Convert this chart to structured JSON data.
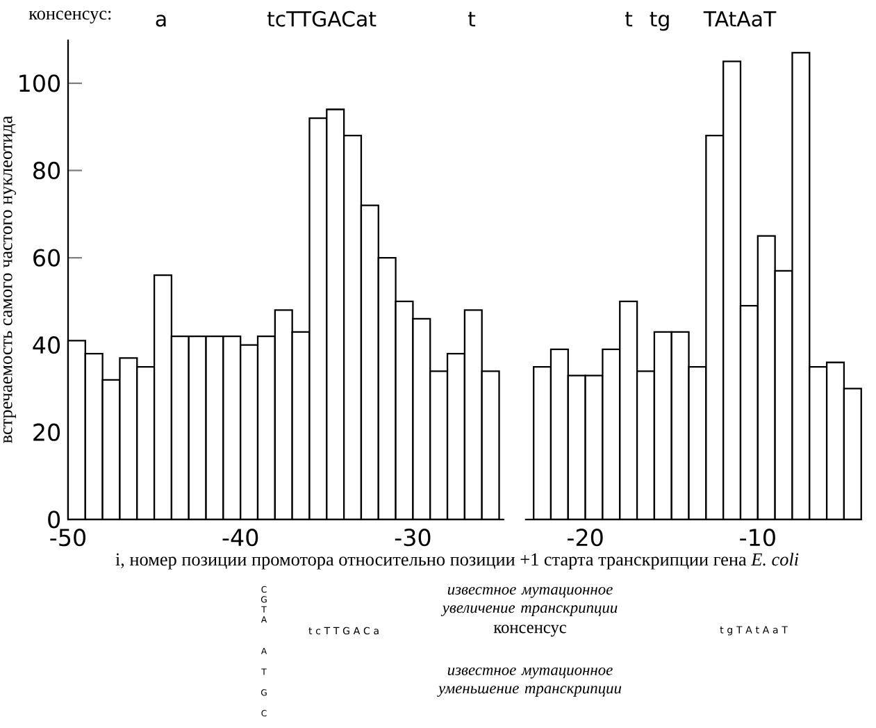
{
  "chart_data": {
    "type": "histogram",
    "title": "консенсус:",
    "ylabel": "встречаемость самого частого нуклеотида",
    "xlabel": "i, номер позиции промотора относительно позиции +1 старта транскрипции гена *E. coli*",
    "bins": [
      -50,
      -49,
      -48,
      -47,
      -46,
      -45,
      -44,
      -43,
      -42,
      -41,
      -40,
      -39,
      -38,
      -37,
      -36,
      -35,
      -34,
      -33,
      -32,
      -31,
      -30,
      -29,
      -28,
      -27,
      -26,
      -25,
      -24,
      -23,
      -22,
      -21,
      -20,
      -19,
      -18,
      -17,
      -16,
      -15,
      -14,
      -13,
      -12,
      -11,
      -10,
      -9,
      -8,
      -7,
      -6,
      -5,
      -4
    ],
    "values": [
      41,
      38,
      32,
      37,
      35,
      56,
      42,
      42,
      42,
      42,
      40,
      42,
      48,
      43,
      92,
      94,
      88,
      72,
      60,
      50,
      46,
      34,
      38,
      48,
      34,
      null,
      null,
      35,
      39,
      33,
      33,
      39,
      50,
      34,
      43,
      43,
      35,
      88,
      105,
      49,
      65,
      57,
      107,
      35,
      36,
      30
    ],
    "color": "#ffffff",
    "xlim": [
      -50,
      -4
    ],
    "xticks": [
      -50,
      -40,
      -30,
      -20,
      -10
    ],
    "ylim": [
      0,
      110
    ],
    "yticks": [
      0,
      20,
      40,
      60,
      80,
      100
    ],
    "annotations": [
      "a",
      "tcTTGACat",
      "t",
      "t",
      "tg",
      "TAtAaT",
      "известное мутационное увеличение транскрипции",
      "консенсус",
      "известное мутационное уменьшение транскрипции",
      "t c T T G A C a",
      "t g T A t A a T",
      "C G T A",
      "A T G C"
    ]
  }
}
